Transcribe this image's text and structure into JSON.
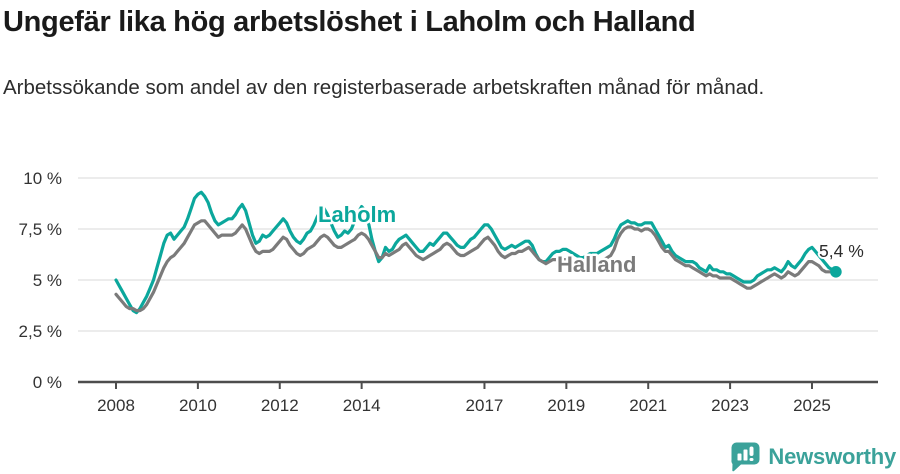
{
  "header": {
    "title": "Ungefär lika hög arbetslöshet i Laholm och Halland",
    "subtitle": "Arbetssökande som andel av den registerbaserade arbetskraften månad för månad."
  },
  "footer": {
    "brand": "Newsworthy"
  },
  "colors": {
    "laholm": "#0ba79c",
    "halland": "#7b7b7b",
    "grid": "#e1e1e1",
    "axis": "#4d4d4d",
    "text": "#333333",
    "brand": "#3ba29a"
  },
  "chart_data": {
    "type": "line",
    "title": "Ungefär lika hög arbetslöshet i Laholm och Halland",
    "x_start": "2008-01",
    "x_end": "2025-08",
    "x_unit": "month",
    "ylim": [
      0,
      10
    ],
    "grid": true,
    "x_axis": {
      "ticks": [
        2008,
        2010,
        2012,
        2014,
        2017,
        2019,
        2021,
        2023,
        2025
      ]
    },
    "y_axis": {
      "ticks": [
        {
          "label": "0 %",
          "value": 0
        },
        {
          "label": "2,5 %",
          "value": 2.5
        },
        {
          "label": "5 %",
          "value": 5
        },
        {
          "label": "7,5 %",
          "value": 7.5
        },
        {
          "label": "10 %",
          "value": 10
        }
      ]
    },
    "series_labels": {
      "laholm": "Laholm",
      "halland": "Halland"
    },
    "annotation": {
      "end_value_label": "5,4 %",
      "end_value": 5.4
    },
    "series": [
      {
        "name": "Laholm",
        "color": "#0ba79c",
        "values": [
          5.0,
          4.7,
          4.4,
          4.1,
          3.8,
          3.5,
          3.4,
          3.6,
          3.9,
          4.2,
          4.6,
          5.0,
          5.6,
          6.2,
          6.8,
          7.2,
          7.3,
          7.0,
          7.2,
          7.4,
          7.6,
          8.0,
          8.5,
          9.0,
          9.2,
          9.3,
          9.1,
          8.8,
          8.3,
          7.9,
          7.7,
          7.8,
          7.9,
          8.0,
          8.0,
          8.2,
          8.5,
          8.7,
          8.4,
          7.8,
          7.2,
          6.8,
          6.9,
          7.2,
          7.1,
          7.2,
          7.4,
          7.6,
          7.8,
          8.0,
          7.8,
          7.4,
          7.1,
          6.9,
          6.8,
          7.0,
          7.3,
          7.4,
          7.7,
          8.1,
          8.4,
          8.5,
          8.2,
          7.8,
          7.4,
          7.1,
          7.2,
          7.4,
          7.3,
          7.5,
          7.9,
          8.3,
          8.6,
          8.4,
          7.8,
          7.0,
          6.4,
          5.9,
          6.1,
          6.6,
          6.4,
          6.5,
          6.8,
          7.0,
          7.1,
          7.2,
          7.0,
          6.8,
          6.6,
          6.4,
          6.4,
          6.6,
          6.8,
          6.7,
          6.9,
          7.1,
          7.3,
          7.3,
          7.1,
          6.9,
          6.7,
          6.6,
          6.6,
          6.8,
          7.0,
          7.1,
          7.3,
          7.5,
          7.7,
          7.7,
          7.5,
          7.2,
          6.9,
          6.6,
          6.5,
          6.6,
          6.7,
          6.6,
          6.7,
          6.8,
          6.9,
          6.9,
          6.7,
          6.3,
          6.0,
          5.9,
          5.9,
          6.1,
          6.3,
          6.4,
          6.4,
          6.5,
          6.5,
          6.4,
          6.3,
          6.2,
          6.1,
          6.1,
          6.2,
          6.3,
          6.3,
          6.3,
          6.4,
          6.5,
          6.6,
          6.7,
          7.0,
          7.4,
          7.7,
          7.8,
          7.9,
          7.8,
          7.8,
          7.7,
          7.7,
          7.8,
          7.8,
          7.8,
          7.5,
          7.2,
          6.9,
          6.6,
          6.7,
          6.4,
          6.2,
          6.1,
          6.0,
          5.9,
          5.9,
          5.9,
          5.8,
          5.6,
          5.5,
          5.4,
          5.7,
          5.5,
          5.5,
          5.4,
          5.4,
          5.3,
          5.3,
          5.2,
          5.1,
          5.0,
          4.9,
          4.9,
          4.9,
          5.0,
          5.2,
          5.3,
          5.4,
          5.5,
          5.5,
          5.6,
          5.5,
          5.4,
          5.6,
          5.9,
          5.7,
          5.6,
          5.8,
          6.0,
          6.3,
          6.5,
          6.6,
          6.4,
          6.2,
          6.0,
          5.8,
          5.6,
          5.5,
          5.4
        ]
      },
      {
        "name": "Halland",
        "color": "#7b7b7b",
        "values": [
          4.3,
          4.1,
          3.9,
          3.7,
          3.6,
          3.6,
          3.5,
          3.5,
          3.6,
          3.8,
          4.1,
          4.4,
          4.8,
          5.2,
          5.6,
          5.9,
          6.1,
          6.2,
          6.4,
          6.6,
          6.8,
          7.1,
          7.4,
          7.7,
          7.8,
          7.9,
          7.9,
          7.7,
          7.5,
          7.3,
          7.1,
          7.2,
          7.2,
          7.2,
          7.2,
          7.3,
          7.5,
          7.7,
          7.5,
          7.1,
          6.7,
          6.4,
          6.3,
          6.4,
          6.4,
          6.4,
          6.5,
          6.7,
          6.9,
          7.1,
          7.0,
          6.7,
          6.5,
          6.3,
          6.2,
          6.3,
          6.5,
          6.6,
          6.7,
          6.9,
          7.1,
          7.2,
          7.1,
          6.9,
          6.7,
          6.6,
          6.6,
          6.7,
          6.8,
          6.9,
          7.0,
          7.2,
          7.3,
          7.2,
          7.0,
          6.7,
          6.4,
          6.1,
          6.1,
          6.3,
          6.2,
          6.3,
          6.4,
          6.5,
          6.7,
          6.8,
          6.6,
          6.4,
          6.2,
          6.1,
          6.0,
          6.1,
          6.2,
          6.3,
          6.4,
          6.5,
          6.7,
          6.8,
          6.7,
          6.5,
          6.3,
          6.2,
          6.2,
          6.3,
          6.4,
          6.5,
          6.6,
          6.8,
          7.0,
          7.1,
          6.9,
          6.7,
          6.4,
          6.2,
          6.1,
          6.2,
          6.3,
          6.3,
          6.4,
          6.4,
          6.5,
          6.6,
          6.4,
          6.2,
          6.0,
          5.9,
          5.8,
          5.9,
          6.0,
          6.0,
          6.0,
          6.0,
          6.0,
          6.0,
          5.9,
          5.8,
          5.8,
          5.7,
          5.8,
          5.8,
          5.9,
          5.9,
          5.9,
          6.0,
          6.1,
          6.2,
          6.5,
          7.0,
          7.3,
          7.5,
          7.6,
          7.6,
          7.5,
          7.5,
          7.4,
          7.5,
          7.5,
          7.4,
          7.2,
          6.9,
          6.6,
          6.4,
          6.4,
          6.2,
          6.0,
          5.9,
          5.8,
          5.7,
          5.7,
          5.6,
          5.5,
          5.4,
          5.3,
          5.2,
          5.3,
          5.2,
          5.2,
          5.1,
          5.1,
          5.1,
          5.1,
          5.0,
          4.9,
          4.8,
          4.7,
          4.6,
          4.6,
          4.7,
          4.8,
          4.9,
          5.0,
          5.1,
          5.2,
          5.3,
          5.2,
          5.1,
          5.2,
          5.4,
          5.3,
          5.2,
          5.3,
          5.5,
          5.7,
          5.9,
          5.9,
          5.8,
          5.7,
          5.5,
          5.4,
          5.4,
          5.4,
          5.4
        ]
      }
    ]
  }
}
